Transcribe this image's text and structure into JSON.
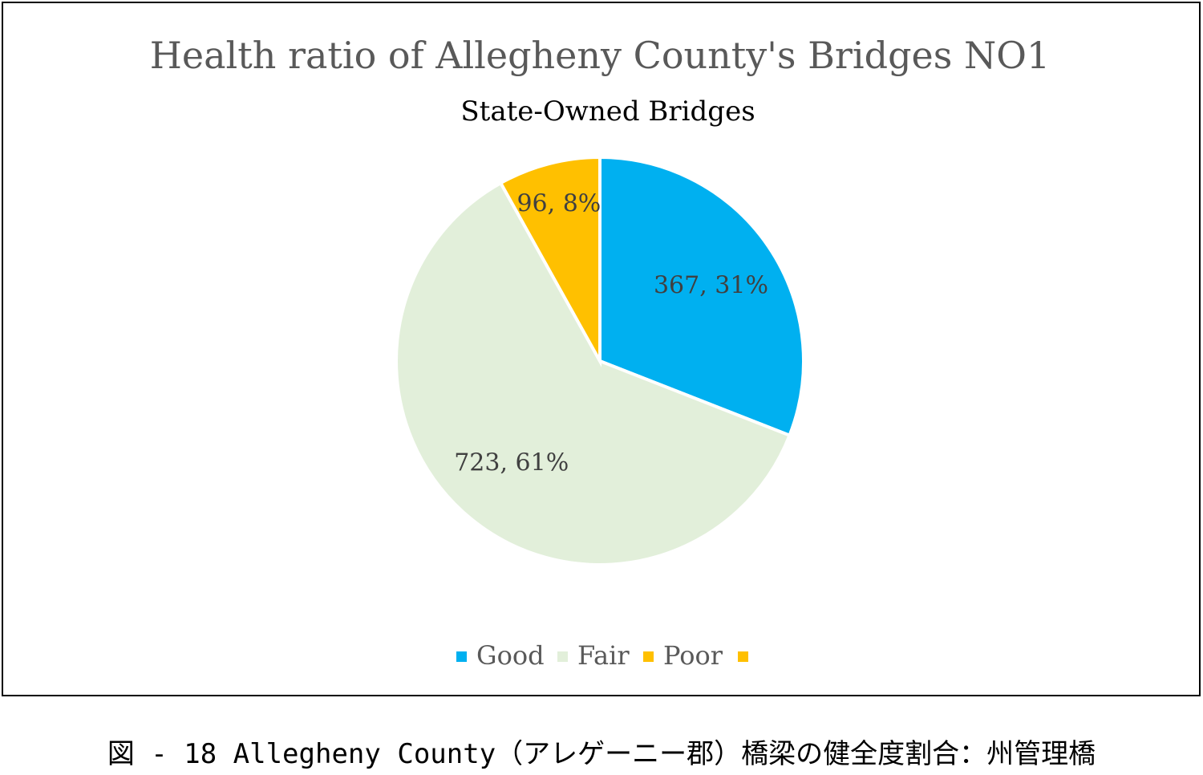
{
  "chart_data": {
    "type": "pie",
    "title": "Health ratio of Allegheny County's Bridges  NO1",
    "subtitle": "State-Owned Bridges",
    "slices": [
      {
        "name": "Good",
        "value": 367,
        "percent": 31,
        "label": "367, 31%",
        "color": "#00B0F0"
      },
      {
        "name": "Fair",
        "value": 723,
        "percent": 61,
        "label": "723, 61%",
        "color": "#E2EFDA"
      },
      {
        "name": "Poor",
        "value": 96,
        "percent": 8,
        "label": "96, 8%",
        "color": "#FFC000"
      }
    ],
    "legend": [
      {
        "name": "Good",
        "color": "#00B0F0"
      },
      {
        "name": "Fair",
        "color": "#E2EFDA"
      },
      {
        "name": "Poor",
        "color": "#FFC000"
      },
      {
        "name": "",
        "color": "#FFC000"
      }
    ],
    "legend_position": "bottom",
    "start_angle_deg": 0,
    "direction": "clockwise"
  },
  "caption": "図 - 18 Allegheny County（アレゲーニー郡）橋梁の健全度割合：州管理橋"
}
